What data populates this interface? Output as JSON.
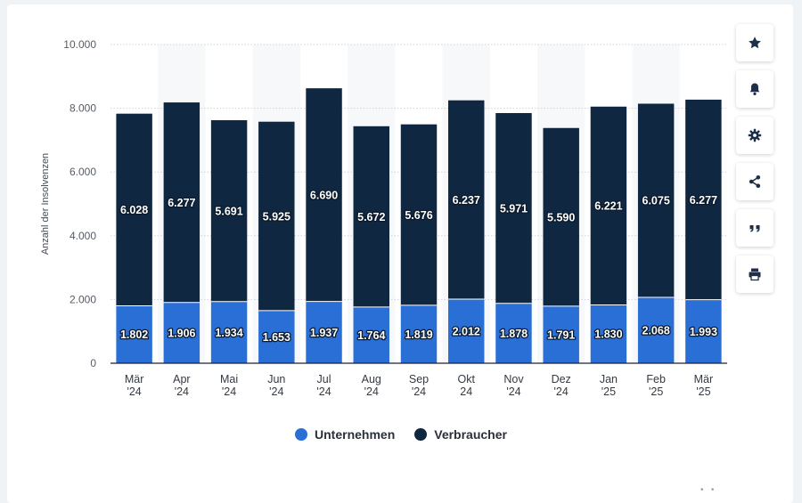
{
  "chart_data": {
    "type": "bar",
    "stacked": true,
    "categories": [
      [
        "Mär",
        "'24"
      ],
      [
        "Apr",
        "'24"
      ],
      [
        "Mai",
        "'24"
      ],
      [
        "Jun",
        "'24"
      ],
      [
        "Jul",
        "'24"
      ],
      [
        "Aug",
        "'24"
      ],
      [
        "Sep",
        "'24"
      ],
      [
        "Okt",
        "24"
      ],
      [
        "Nov",
        "'24"
      ],
      [
        "Dez",
        "'24"
      ],
      [
        "Jan",
        "'25"
      ],
      [
        "Feb",
        "'25"
      ],
      [
        "Mär",
        "'25"
      ]
    ],
    "series": [
      {
        "name": "Unternehmen",
        "color": "#2a6fd6",
        "values": [
          1802,
          1906,
          1934,
          1653,
          1937,
          1764,
          1819,
          2012,
          1878,
          1791,
          1830,
          2068,
          1993
        ],
        "labels": [
          "1.802",
          "1.906",
          "1.934",
          "1.653",
          "1.937",
          "1.764",
          "1.819",
          "2.012",
          "1.878",
          "1.791",
          "1.830",
          "2.068",
          "1.993"
        ]
      },
      {
        "name": "Verbraucher",
        "color": "#0f2740",
        "values": [
          6028,
          6277,
          5691,
          5925,
          6690,
          5672,
          5676,
          6237,
          5971,
          5590,
          6221,
          6075,
          6277
        ],
        "labels": [
          "6.028",
          "6.277",
          "5.691",
          "5.925",
          "6.690",
          "5.672",
          "5.676",
          "6.237",
          "5.971",
          "5.590",
          "6.221",
          "6.075",
          "6.277"
        ]
      }
    ],
    "ylabel": "Anzahl der Insolvenzen",
    "ylim": [
      0,
      10000
    ],
    "yticks": [
      0,
      2000,
      4000,
      6000,
      8000,
      10000
    ],
    "ytick_labels": [
      "0",
      "2.000",
      "4.000",
      "6.000",
      "8.000",
      "10.000"
    ],
    "grid": true,
    "legend_position": "bottom-center"
  },
  "legend": {
    "items": [
      {
        "label": "Unternehmen",
        "color": "#2a6fd6"
      },
      {
        "label": "Verbraucher",
        "color": "#0f2740"
      }
    ]
  },
  "toolbar": {
    "buttons": [
      {
        "icon": "star-icon"
      },
      {
        "icon": "bell-icon"
      },
      {
        "icon": "gear-icon"
      },
      {
        "icon": "share-icon"
      },
      {
        "icon": "quote-icon"
      },
      {
        "icon": "print-icon"
      }
    ]
  }
}
